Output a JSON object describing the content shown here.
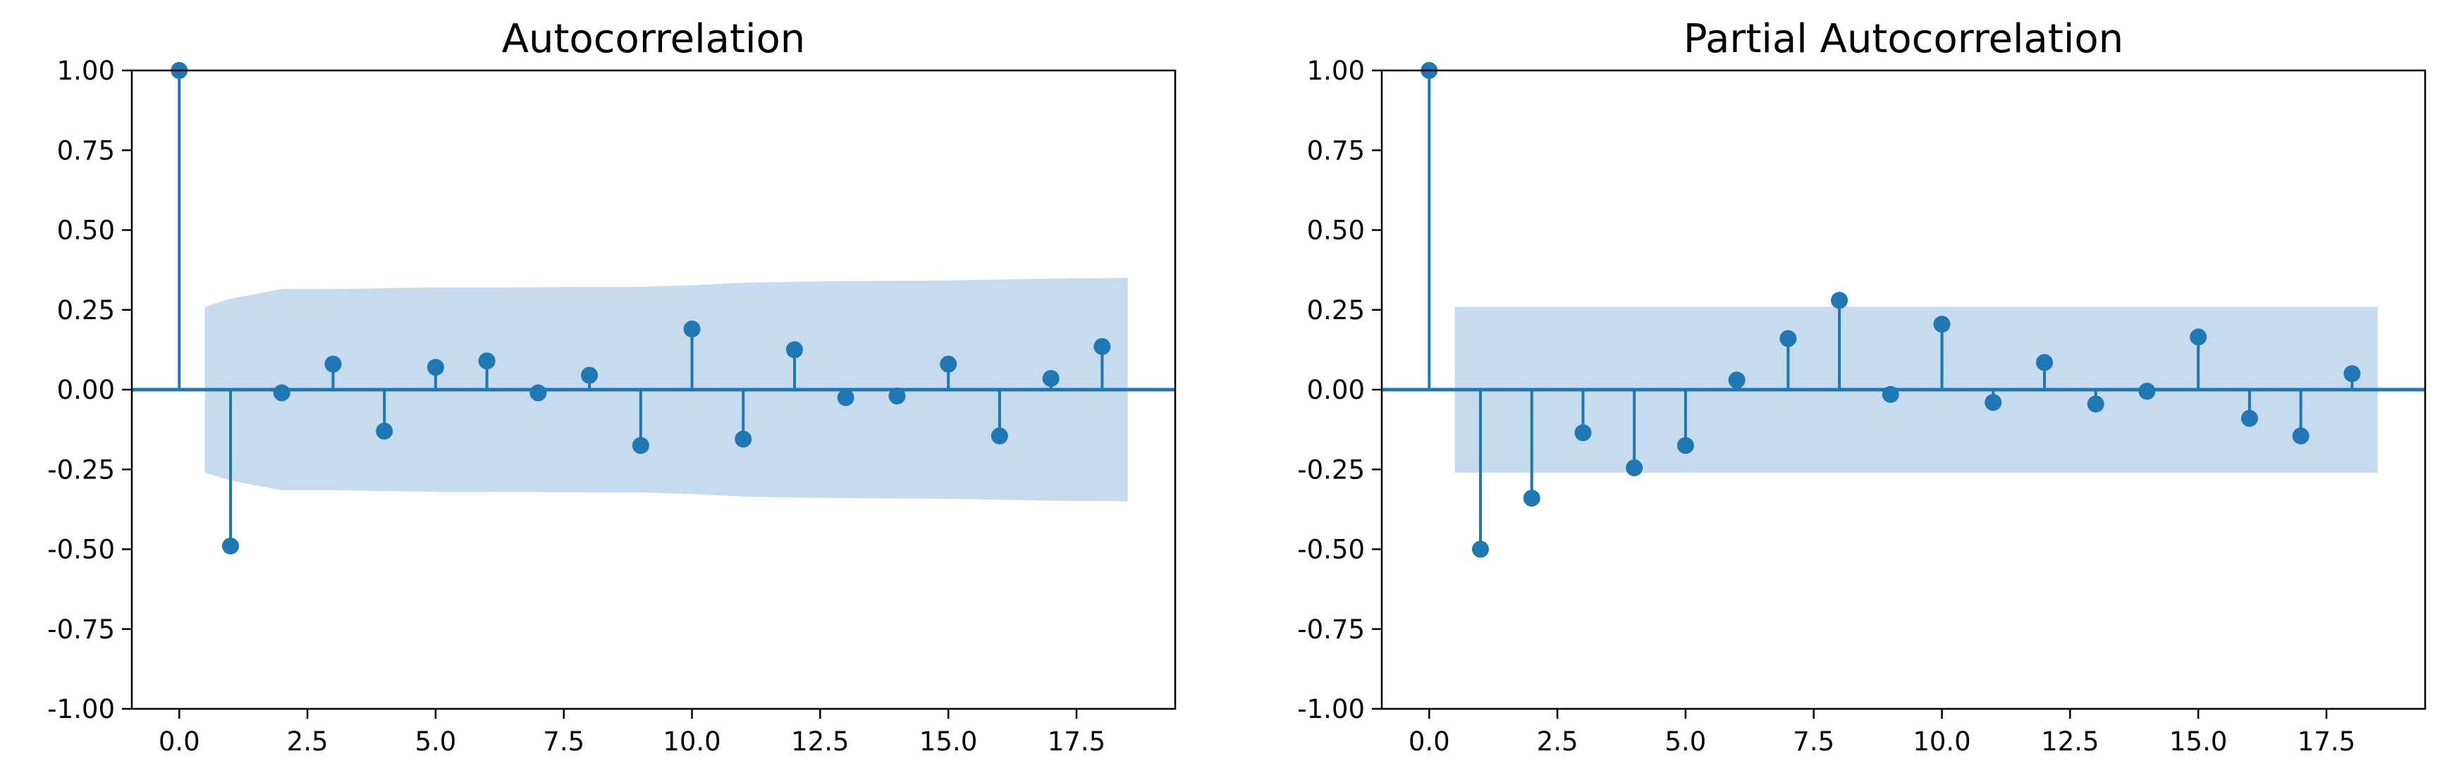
{
  "chart_data": [
    {
      "type": "stem",
      "title": "Autocorrelation",
      "xlabel": "",
      "ylabel": "",
      "xlim": [
        -0.925,
        19.425
      ],
      "ylim": [
        -1.0,
        1.0
      ],
      "xticks": [
        "0.0",
        "2.5",
        "5.0",
        "7.5",
        "10.0",
        "12.5",
        "15.0",
        "17.5"
      ],
      "yticks": [
        "1.00",
        "0.75",
        "0.50",
        "0.25",
        "0.00",
        "-0.25",
        "-0.50",
        "-0.75",
        "-1.00"
      ],
      "lags": [
        0,
        1,
        2,
        3,
        4,
        5,
        6,
        7,
        8,
        9,
        10,
        11,
        12,
        13,
        14,
        15,
        16,
        17,
        18
      ],
      "values": [
        1.0,
        -0.49,
        -0.01,
        0.08,
        -0.13,
        0.07,
        0.09,
        -0.01,
        0.045,
        -0.175,
        0.19,
        -0.155,
        0.125,
        -0.025,
        -0.02,
        0.08,
        -0.145,
        0.035,
        0.135
      ],
      "confidence_band": {
        "x": [
          0.5,
          1,
          2,
          3,
          4,
          5,
          6,
          7,
          8,
          9,
          10,
          11,
          12,
          13,
          14,
          15,
          16,
          17,
          18,
          18.5
        ],
        "upper": [
          0.26,
          0.285,
          0.315,
          0.315,
          0.318,
          0.32,
          0.32,
          0.321,
          0.322,
          0.322,
          0.327,
          0.335,
          0.338,
          0.34,
          0.341,
          0.342,
          0.345,
          0.348,
          0.349,
          0.35
        ],
        "lower": [
          -0.26,
          -0.285,
          -0.315,
          -0.315,
          -0.318,
          -0.32,
          -0.32,
          -0.321,
          -0.322,
          -0.322,
          -0.327,
          -0.335,
          -0.338,
          -0.34,
          -0.341,
          -0.342,
          -0.345,
          -0.348,
          -0.349,
          -0.35
        ]
      },
      "grid": false,
      "colors": {
        "stem": "#1f77b4",
        "band": "#c6dbed",
        "axis": "#000000"
      }
    },
    {
      "type": "stem",
      "title": "Partial Autocorrelation",
      "xlabel": "",
      "ylabel": "",
      "xlim": [
        -0.925,
        19.425
      ],
      "ylim": [
        -1.0,
        1.0
      ],
      "xticks": [
        "0.0",
        "2.5",
        "5.0",
        "7.5",
        "10.0",
        "12.5",
        "15.0",
        "17.5"
      ],
      "yticks": [
        "1.00",
        "0.75",
        "0.50",
        "0.25",
        "0.00",
        "-0.25",
        "-0.50",
        "-0.75",
        "-1.00"
      ],
      "lags": [
        0,
        1,
        2,
        3,
        4,
        5,
        6,
        7,
        8,
        9,
        10,
        11,
        12,
        13,
        14,
        15,
        16,
        17,
        18
      ],
      "values": [
        1.0,
        -0.5,
        -0.34,
        -0.135,
        -0.245,
        -0.175,
        0.03,
        0.16,
        0.28,
        -0.015,
        0.205,
        -0.04,
        0.085,
        -0.045,
        -0.005,
        0.165,
        -0.09,
        -0.145,
        0.05
      ],
      "confidence_band": {
        "x": [
          0.5,
          18.5
        ],
        "upper": [
          0.26,
          0.26
        ],
        "lower": [
          -0.26,
          -0.26
        ]
      },
      "grid": false,
      "colors": {
        "stem": "#1f77b4",
        "band": "#c6dbed",
        "axis": "#000000"
      }
    }
  ]
}
